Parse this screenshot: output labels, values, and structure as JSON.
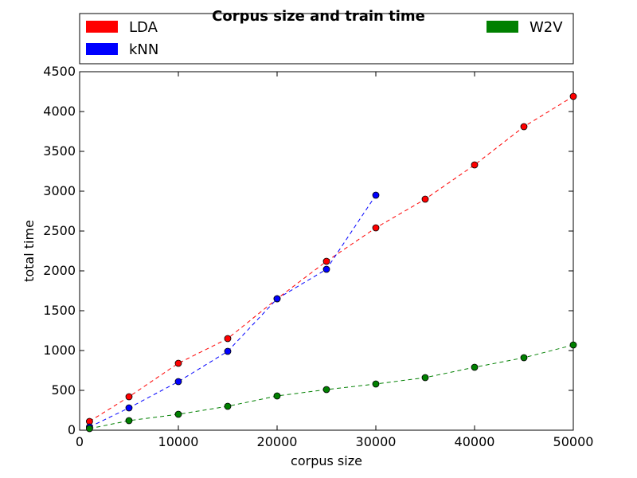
{
  "chart_data": {
    "type": "line",
    "title": "Corpus size and train time",
    "xlabel": "corpus size",
    "ylabel": "total time",
    "xlim": [
      0,
      50000
    ],
    "ylim": [
      0,
      4500
    ],
    "xticks": [
      0,
      10000,
      20000,
      30000,
      40000,
      50000
    ],
    "yticks": [
      0,
      500,
      1000,
      1500,
      2000,
      2500,
      3000,
      3500,
      4000,
      4500
    ],
    "grid": false,
    "legend_position": "top",
    "line_style": "dashed",
    "marker": "circle",
    "series": [
      {
        "name": "LDA",
        "color": "#ff0000",
        "x": [
          1000,
          5000,
          10000,
          15000,
          20000,
          25000,
          30000,
          35000,
          40000,
          45000,
          50000
        ],
        "values": [
          110,
          420,
          840,
          1150,
          1650,
          2120,
          2540,
          2900,
          3330,
          3810,
          4190
        ]
      },
      {
        "name": "kNN",
        "color": "#0000ff",
        "x": [
          1000,
          5000,
          10000,
          15000,
          20000,
          25000,
          30000
        ],
        "values": [
          40,
          280,
          610,
          990,
          1650,
          2020,
          2950
        ]
      },
      {
        "name": "W2V",
        "color": "#008000",
        "x": [
          1000,
          5000,
          10000,
          15000,
          20000,
          25000,
          30000,
          35000,
          40000,
          45000,
          50000
        ],
        "values": [
          20,
          120,
          200,
          300,
          430,
          510,
          580,
          660,
          790,
          910,
          1070
        ]
      }
    ]
  }
}
